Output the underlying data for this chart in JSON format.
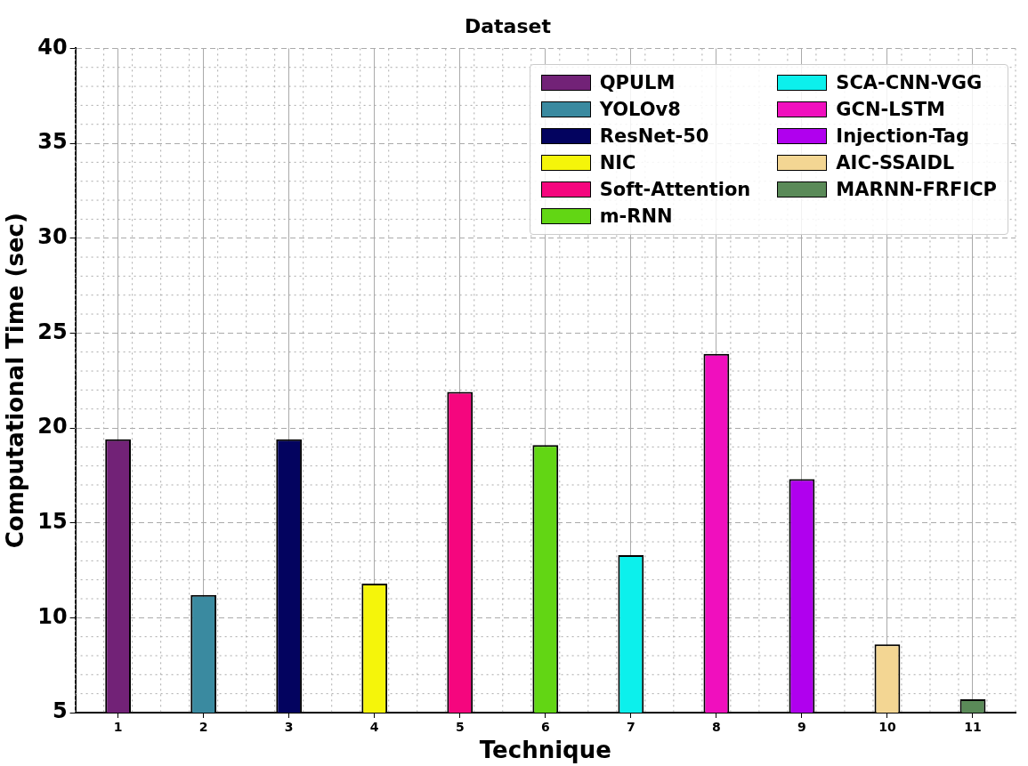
{
  "chart_data": {
    "type": "bar",
    "title": "Dataset",
    "xlabel": "Technique",
    "ylabel": "Computational Time (sec)",
    "categories": [
      "1",
      "2",
      "3",
      "4",
      "5",
      "6",
      "7",
      "8",
      "9",
      "10",
      "11"
    ],
    "series": [
      {
        "name": "QPULM",
        "color": "#722277",
        "values": [
          19.4,
          null,
          null,
          null,
          null,
          null,
          null,
          null,
          null,
          null,
          null
        ]
      },
      {
        "name": "YOLOv8",
        "color": "#3a8aa0",
        "values": [
          null,
          11.2,
          null,
          null,
          null,
          null,
          null,
          null,
          null,
          null,
          null
        ]
      },
      {
        "name": "ResNet-50",
        "color": "#03035f",
        "values": [
          null,
          null,
          19.4,
          null,
          null,
          null,
          null,
          null,
          null,
          null,
          null
        ]
      },
      {
        "name": "NIC",
        "color": "#f5f50a",
        "values": [
          null,
          null,
          null,
          11.8,
          null,
          null,
          null,
          null,
          null,
          null,
          null
        ]
      },
      {
        "name": "Soft-Attention",
        "color": "#f5067e",
        "values": [
          null,
          null,
          null,
          null,
          21.9,
          null,
          null,
          null,
          null,
          null,
          null
        ]
      },
      {
        "name": "m-RNN",
        "color": "#62d614",
        "values": [
          null,
          null,
          null,
          null,
          null,
          19.1,
          null,
          null,
          null,
          null,
          null
        ]
      },
      {
        "name": "SCA-CNN-VGG",
        "color": "#0cf0ec",
        "values": [
          null,
          null,
          null,
          null,
          null,
          null,
          13.3,
          null,
          null,
          null,
          null
        ]
      },
      {
        "name": "GCN-LSTM",
        "color": "#f00fbe",
        "values": [
          null,
          null,
          null,
          null,
          null,
          null,
          null,
          23.9,
          null,
          null,
          null
        ]
      },
      {
        "name": "Injection-Tag",
        "color": "#b000ee",
        "values": [
          null,
          null,
          null,
          null,
          null,
          null,
          null,
          null,
          17.3,
          null,
          null
        ]
      },
      {
        "name": "AIC-SSAIDL",
        "color": "#f3d693",
        "values": [
          null,
          null,
          null,
          null,
          null,
          null,
          null,
          null,
          null,
          8.6,
          null
        ]
      },
      {
        "name": "MARNN-FRFICP",
        "color": "#5a8a58",
        "values": [
          null,
          null,
          null,
          null,
          null,
          null,
          null,
          null,
          null,
          null,
          5.7
        ]
      }
    ],
    "ylim": [
      5,
      40
    ],
    "yticks": [
      5,
      10,
      15,
      20,
      25,
      30,
      35,
      40
    ],
    "grid": true,
    "legend": "top right"
  }
}
